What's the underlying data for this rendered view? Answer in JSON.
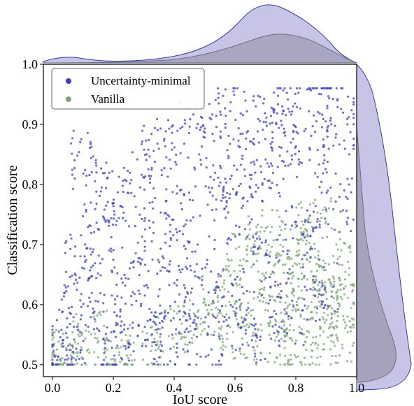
{
  "chart_data": {
    "type": "scatter",
    "xlabel": "IoU score",
    "ylabel": "Classification score",
    "xlim": [
      -0.03,
      1.0
    ],
    "ylim": [
      0.48,
      1.0
    ],
    "xticks": [
      "0.0",
      "0.2",
      "0.4",
      "0.6",
      "0.8",
      "1.0"
    ],
    "yticks": [
      "0.5",
      "0.6",
      "0.7",
      "0.8",
      "0.9",
      "1.0"
    ],
    "legend_position": "top-left",
    "grid": false,
    "marginals": "kde on top (IoU) and right (classification score)",
    "series": [
      {
        "name": "Uncertainty-minimal",
        "color": "#3f3fb8",
        "marginal_fill": "#b4b0de",
        "description_points": "dense cluster around IoU 0.6-0.9 and scores 0.5-0.95, sparse spread at low IoU",
        "points": [
          [
            0.02,
            0.51
          ],
          [
            0.05,
            0.55
          ],
          [
            0.08,
            0.6
          ],
          [
            0.1,
            0.68
          ],
          [
            0.12,
            0.84
          ],
          [
            0.15,
            0.72
          ],
          [
            0.18,
            0.57
          ],
          [
            0.2,
            0.78
          ],
          [
            0.22,
            0.52
          ],
          [
            0.25,
            0.65
          ],
          [
            0.28,
            0.81
          ],
          [
            0.3,
            0.58
          ],
          [
            0.33,
            0.7
          ],
          [
            0.35,
            0.86
          ],
          [
            0.38,
            0.54
          ],
          [
            0.4,
            0.75
          ],
          [
            0.42,
            0.62
          ],
          [
            0.45,
            0.89
          ],
          [
            0.48,
            0.67
          ],
          [
            0.5,
            0.53
          ],
          [
            0.52,
            0.79
          ],
          [
            0.55,
            0.92
          ],
          [
            0.58,
            0.61
          ],
          [
            0.6,
            0.84
          ],
          [
            0.62,
            0.74
          ],
          [
            0.65,
            0.55
          ],
          [
            0.67,
            0.91
          ],
          [
            0.7,
            0.82
          ],
          [
            0.72,
            0.66
          ],
          [
            0.75,
            0.88
          ],
          [
            0.77,
            0.58
          ],
          [
            0.8,
            0.93
          ],
          [
            0.82,
            0.72
          ],
          [
            0.85,
            0.85
          ],
          [
            0.88,
            0.62
          ],
          [
            0.9,
            0.95
          ],
          [
            0.93,
            0.77
          ],
          [
            0.96,
            0.9
          ]
        ]
      },
      {
        "name": "Vanilla",
        "color": "#7fa57a",
        "marginal_fill": "#8e8ea0",
        "description_points": "concentrated around IoU 0.6-0.95 with scores 0.5-0.75",
        "points": [
          [
            0.01,
            0.5
          ],
          [
            0.05,
            0.52
          ],
          [
            0.12,
            0.55
          ],
          [
            0.2,
            0.51
          ],
          [
            0.3,
            0.53
          ],
          [
            0.4,
            0.56
          ],
          [
            0.5,
            0.58
          ],
          [
            0.55,
            0.62
          ],
          [
            0.6,
            0.55
          ],
          [
            0.63,
            0.68
          ],
          [
            0.66,
            0.6
          ],
          [
            0.7,
            0.72
          ],
          [
            0.72,
            0.53
          ],
          [
            0.75,
            0.65
          ],
          [
            0.78,
            0.58
          ],
          [
            0.8,
            0.7
          ],
          [
            0.82,
            0.52
          ],
          [
            0.84,
            0.63
          ],
          [
            0.86,
            0.74
          ],
          [
            0.88,
            0.56
          ],
          [
            0.9,
            0.61
          ],
          [
            0.92,
            0.67
          ],
          [
            0.94,
            0.54
          ],
          [
            0.96,
            0.6
          ]
        ]
      }
    ]
  }
}
